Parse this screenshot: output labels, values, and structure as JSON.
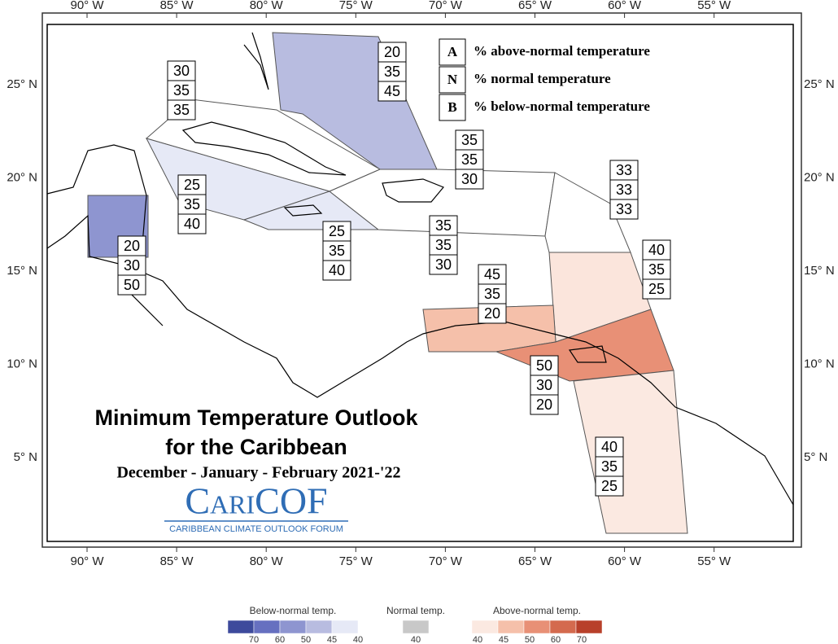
{
  "title": "Minimum Temperature Outlook",
  "subtitle": "for the Caribbean",
  "season": "December - January - February 2021-'22",
  "logo": "CariCOF",
  "logo_tagline": "CARIBBEAN CLIMATE OUTLOOK FORUM",
  "longitudes": [
    "90° W",
    "85° W",
    "80° W",
    "75° W",
    "70° W",
    "65° W",
    "60° W",
    "55° W"
  ],
  "latitudes": [
    "25° N",
    "20° N",
    "15° N",
    "10° N",
    "5° N"
  ],
  "key": [
    {
      "letter": "A",
      "text": "% above-normal temperature"
    },
    {
      "letter": "N",
      "text": "% normal temperature"
    },
    {
      "letter": "B",
      "text": "% below-normal temperature"
    }
  ],
  "regions": [
    {
      "values": [
        20,
        35,
        45
      ]
    },
    {
      "values": [
        30,
        35,
        35
      ]
    },
    {
      "values": [
        25,
        35,
        40
      ]
    },
    {
      "values": [
        20,
        30,
        50
      ]
    },
    {
      "values": [
        25,
        35,
        40
      ]
    },
    {
      "values": [
        35,
        35,
        30
      ]
    },
    {
      "values": [
        35,
        35,
        30
      ]
    },
    {
      "values": [
        33,
        33,
        33
      ]
    },
    {
      "values": [
        40,
        35,
        25
      ]
    },
    {
      "values": [
        45,
        35,
        20
      ]
    },
    {
      "values": [
        50,
        30,
        20
      ]
    },
    {
      "values": [
        40,
        35,
        25
      ]
    }
  ],
  "color_scale": [
    {
      "label": "Below-normal temp.",
      "ticks": [
        70,
        60,
        50,
        45,
        40
      ],
      "colors": [
        "#3d4a9c",
        "#6670c0",
        "#8e95d0",
        "#b8bce0",
        "#e6e9f6"
      ]
    },
    {
      "label": "Normal temp.",
      "ticks": [
        40
      ],
      "colors": [
        "#c8c8c8"
      ]
    },
    {
      "label": "Above-normal temp.",
      "ticks": [
        40,
        45,
        50,
        60,
        70
      ],
      "colors": [
        "#fbe9e1",
        "#f5c0aa",
        "#e89076",
        "#d46a4e",
        "#b8402a"
      ]
    }
  ]
}
